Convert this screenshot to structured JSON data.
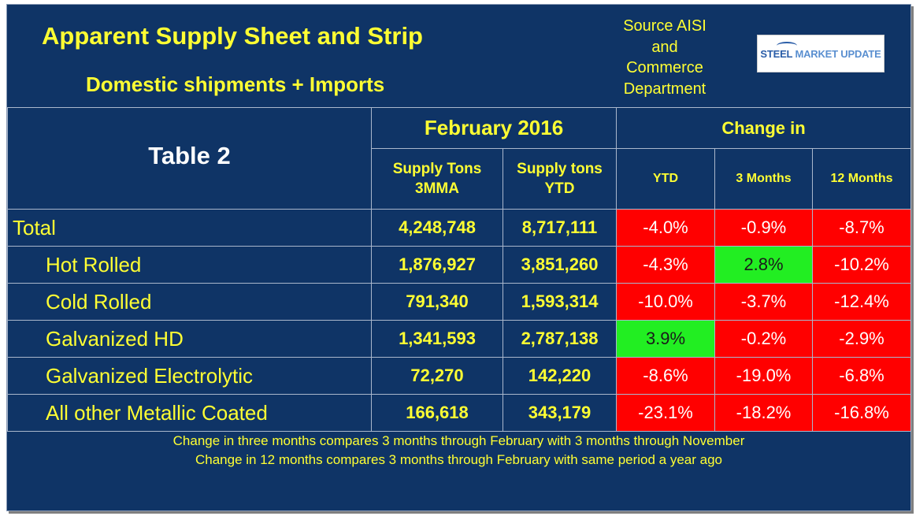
{
  "header": {
    "title": "Apparent Supply Sheet and Strip",
    "subtitle": "Domestic shipments + Imports",
    "source_lines": [
      "Source AISI",
      "and",
      "Commerce",
      "Department"
    ],
    "logo_text_a": "STEEL ",
    "logo_text_b": "MARKET UPDATE"
  },
  "table": {
    "label": "Table 2",
    "period": "February 2016",
    "change_header": "Change in",
    "columns": {
      "supply_3mma": "Supply Tons 3MMA",
      "supply_3mma_l1": "Supply Tons",
      "supply_3mma_l2": "3MMA",
      "supply_ytd_l1": "Supply tons",
      "supply_ytd_l2": "YTD",
      "ytd": "YTD",
      "three_months": "3 Months",
      "twelve_months": "12 Months"
    },
    "rows": [
      {
        "label": "Total",
        "mma3": "4,248,748",
        "ytd_tons": "8,717,111",
        "ytd": "-4.0%",
        "m3": "-0.9%",
        "m12": "-8.7%"
      },
      {
        "label": "Hot Rolled",
        "mma3": "1,876,927",
        "ytd_tons": "3,851,260",
        "ytd": "-4.3%",
        "m3": "2.8%",
        "m12": "-10.2%"
      },
      {
        "label": "Cold Rolled",
        "mma3": "791,340",
        "ytd_tons": "1,593,314",
        "ytd": "-10.0%",
        "m3": "-3.7%",
        "m12": "-12.4%"
      },
      {
        "label": "Galvanized HD",
        "mma3": "1,341,593",
        "ytd_tons": "2,787,138",
        "ytd": "3.9%",
        "m3": "-0.2%",
        "m12": "-2.9%"
      },
      {
        "label": "Galvanized Electrolytic",
        "mma3": "72,270",
        "ytd_tons": "142,220",
        "ytd": "-8.6%",
        "m3": "-19.0%",
        "m12": "-6.8%"
      },
      {
        "label": "All other Metallic Coated",
        "mma3": "166,618",
        "ytd_tons": "343,179",
        "ytd": "-23.1%",
        "m3": "-18.2%",
        "m12": "-16.8%"
      }
    ]
  },
  "notes": [
    "Change in three months compares 3 months through February with 3 months through November",
    "Change in 12 months compares 3 months through February with same period a year ago"
  ],
  "colors": {
    "background": "#0f3466",
    "text_yellow": "#ffff33",
    "negative": "#ff0000",
    "positive": "#22ee22"
  }
}
